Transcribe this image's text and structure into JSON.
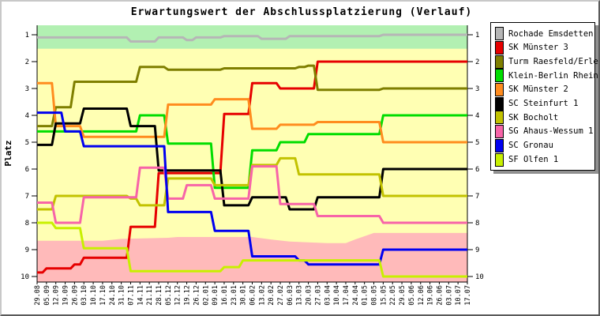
{
  "chart_data": {
    "type": "line",
    "title": "Erwartungswert der Abschlussplatzierung (Verlauf)",
    "xlabel": "",
    "ylabel": "Platz",
    "y_ticks": [
      1,
      2,
      3,
      4,
      5,
      6,
      7,
      8,
      9,
      10
    ],
    "y_axis_inverted": true,
    "ylim": [
      0.65,
      10.2
    ],
    "grid": false,
    "legend_position": "right-outside",
    "x_labels": [
      "29.08",
      "05.09",
      "12.09",
      "19.09",
      "26.09",
      "03.10",
      "10.10",
      "17.10",
      "24.10",
      "31.10",
      "07.11",
      "14.11",
      "21.11",
      "28.11",
      "05.12",
      "12.12",
      "19.12",
      "26.12",
      "02.01",
      "09.01",
      "16.01",
      "23.01",
      "30.01",
      "06.02",
      "13.02",
      "20.02",
      "27.02",
      "06.03",
      "13.03",
      "20.03",
      "27.03",
      "03.04",
      "10.04",
      "17.04",
      "24.04",
      "01.05",
      "08.05",
      "15.05",
      "22.05",
      "29.05",
      "05.06",
      "12.06",
      "19.06",
      "26.06",
      "03.07",
      "10.07",
      "17.07"
    ],
    "bands": [
      {
        "name": "promotion-zone",
        "color": "#b2f0b2",
        "from_p": 0.65,
        "to_p": 1.52
      },
      {
        "name": "midfield-zone",
        "color": "#ffffb3",
        "from_p": 1.52,
        "to_p": "relegation-boundary"
      },
      {
        "name": "relegation-zone",
        "color": "#ffbaba",
        "boundary": [
          [
            0,
            8.67
          ],
          [
            7,
            8.67
          ],
          [
            9,
            8.6
          ],
          [
            14,
            8.56
          ],
          [
            15,
            8.53
          ],
          [
            23,
            8.53
          ],
          [
            25,
            8.62
          ],
          [
            27,
            8.7
          ],
          [
            31,
            8.76
          ],
          [
            33,
            8.76
          ],
          [
            34,
            8.62
          ],
          [
            35,
            8.5
          ],
          [
            36,
            8.38
          ],
          [
            46,
            8.38
          ]
        ],
        "to_p": 10.2
      }
    ],
    "series": [
      {
        "name": "Rochade Emsdetten 1",
        "color": "#b6b6b6",
        "values": [
          1.1,
          1.1,
          1.1,
          1.1,
          1.1,
          1.1,
          1.1,
          1.1,
          1.1,
          1.1,
          1.25,
          1.25,
          1.25,
          1.1,
          1.1,
          1.1,
          1.2,
          1.1,
          1.1,
          1.1,
          1.05,
          1.05,
          1.05,
          1.05,
          1.15,
          1.15,
          1.15,
          1.05,
          1.05,
          1.05,
          1.05,
          1.05,
          1.05,
          1.05,
          1.05,
          1.05,
          1.05,
          1.0,
          1.0,
          1.0,
          1.0,
          1.0,
          1.0,
          1.0,
          1.0,
          1.0,
          1.0
        ]
      },
      {
        "name": "SK Münster 3",
        "color": "#e60000",
        "values": [
          9.85,
          9.7,
          9.7,
          9.7,
          9.55,
          9.3,
          9.3,
          9.3,
          9.3,
          9.3,
          8.15,
          8.15,
          8.15,
          6.15,
          6.15,
          6.15,
          6.15,
          6.15,
          6.15,
          6.15,
          3.95,
          3.95,
          3.95,
          2.8,
          2.8,
          2.8,
          3.0,
          3.0,
          3.0,
          3.0,
          2.0,
          2.0,
          2.0,
          2.0,
          2.0,
          2.0,
          2.0,
          2.0,
          2.0,
          2.0,
          2.0,
          2.0,
          2.0,
          2.0,
          2.0,
          2.0,
          2.0
        ]
      },
      {
        "name": "Turm Raesfeld/Erle",
        "color": "#7f7f00",
        "values": [
          4.4,
          4.4,
          3.7,
          3.7,
          2.75,
          2.75,
          2.75,
          2.75,
          2.75,
          2.75,
          2.75,
          2.2,
          2.2,
          2.2,
          2.3,
          2.3,
          2.3,
          2.3,
          2.3,
          2.3,
          2.25,
          2.25,
          2.25,
          2.25,
          2.25,
          2.25,
          2.25,
          2.25,
          2.2,
          2.15,
          3.05,
          3.05,
          3.05,
          3.05,
          3.05,
          3.05,
          3.05,
          3.0,
          3.0,
          3.0,
          3.0,
          3.0,
          3.0,
          3.0,
          3.0,
          3.0,
          3.0
        ]
      },
      {
        "name": "Klein-Berlin Rheine",
        "color": "#00dd00",
        "values": [
          4.6,
          4.6,
          4.6,
          4.6,
          4.6,
          4.6,
          4.6,
          4.6,
          4.6,
          4.6,
          4.6,
          4.0,
          4.0,
          4.0,
          5.05,
          5.05,
          5.05,
          5.05,
          5.05,
          6.7,
          6.7,
          6.7,
          6.7,
          5.3,
          5.3,
          5.3,
          5.0,
          5.0,
          5.0,
          4.7,
          4.7,
          4.7,
          4.7,
          4.7,
          4.7,
          4.7,
          4.7,
          4.0,
          4.0,
          4.0,
          4.0,
          4.0,
          4.0,
          4.0,
          4.0,
          4.0,
          4.0
        ]
      },
      {
        "name": "SK Münster 2",
        "color": "#ff8c1e",
        "values": [
          2.8,
          2.8,
          4.4,
          4.4,
          4.4,
          4.8,
          4.8,
          4.8,
          4.8,
          4.8,
          4.8,
          4.8,
          4.8,
          4.8,
          3.6,
          3.6,
          3.6,
          3.6,
          3.6,
          3.4,
          3.4,
          3.4,
          3.4,
          4.5,
          4.5,
          4.5,
          4.35,
          4.35,
          4.35,
          4.35,
          4.25,
          4.25,
          4.25,
          4.25,
          4.25,
          4.25,
          4.25,
          5.0,
          5.0,
          5.0,
          5.0,
          5.0,
          5.0,
          5.0,
          5.0,
          5.0,
          5.0
        ]
      },
      {
        "name": "SC Steinfurt 1",
        "color": "#000000",
        "values": [
          5.1,
          5.1,
          4.3,
          4.3,
          4.3,
          3.75,
          3.75,
          3.75,
          3.75,
          3.75,
          4.4,
          4.4,
          4.4,
          6.05,
          6.05,
          6.05,
          6.05,
          6.05,
          6.05,
          6.05,
          7.35,
          7.35,
          7.35,
          7.05,
          7.05,
          7.05,
          7.05,
          7.5,
          7.5,
          7.5,
          7.05,
          7.05,
          7.05,
          7.05,
          7.05,
          7.05,
          7.05,
          6.0,
          6.0,
          6.0,
          6.0,
          6.0,
          6.0,
          6.0,
          6.0,
          6.0,
          6.0
        ]
      },
      {
        "name": "SK Bocholt",
        "color": "#c2c200",
        "values": [
          7.5,
          7.5,
          7.0,
          7.0,
          7.0,
          7.0,
          7.0,
          7.0,
          7.0,
          7.0,
          7.1,
          7.35,
          7.35,
          7.35,
          6.35,
          6.35,
          6.35,
          6.35,
          6.35,
          6.6,
          6.6,
          6.6,
          6.6,
          5.85,
          5.85,
          5.85,
          5.6,
          5.6,
          6.2,
          6.2,
          6.2,
          6.2,
          6.2,
          6.2,
          6.2,
          6.2,
          6.2,
          7.0,
          7.0,
          7.0,
          7.0,
          7.0,
          7.0,
          7.0,
          7.0,
          7.0,
          7.0
        ]
      },
      {
        "name": "SG Ahaus-Wessum 1",
        "color": "#f764a8",
        "values": [
          7.25,
          7.25,
          8.0,
          8.0,
          8.0,
          7.05,
          7.05,
          7.05,
          7.05,
          7.05,
          7.05,
          5.95,
          5.95,
          5.95,
          7.1,
          7.1,
          6.6,
          6.6,
          6.6,
          7.1,
          7.1,
          7.1,
          7.1,
          5.9,
          5.9,
          5.9,
          7.3,
          7.3,
          7.3,
          7.3,
          7.75,
          7.75,
          7.75,
          7.75,
          7.75,
          7.75,
          7.75,
          8.0,
          8.0,
          8.0,
          8.0,
          8.0,
          8.0,
          8.0,
          8.0,
          8.0,
          8.0
        ]
      },
      {
        "name": "SC Gronau",
        "color": "#0000f0",
        "values": [
          3.9,
          3.9,
          3.9,
          4.6,
          4.6,
          5.15,
          5.15,
          5.15,
          5.15,
          5.15,
          5.15,
          5.15,
          5.15,
          5.15,
          7.6,
          7.6,
          7.6,
          7.6,
          7.6,
          8.3,
          8.3,
          8.3,
          8.3,
          9.25,
          9.25,
          9.25,
          9.25,
          9.25,
          9.4,
          9.55,
          9.55,
          9.55,
          9.55,
          9.55,
          9.55,
          9.55,
          9.55,
          9.0,
          9.0,
          9.0,
          9.0,
          9.0,
          9.0,
          9.0,
          9.0,
          9.0,
          9.0
        ]
      },
      {
        "name": "SF Olfen 1",
        "color": "#c8f000",
        "values": [
          8.0,
          8.0,
          8.2,
          8.2,
          8.2,
          8.95,
          8.95,
          8.95,
          8.95,
          8.95,
          9.8,
          9.8,
          9.8,
          9.8,
          9.8,
          9.8,
          9.8,
          9.8,
          9.8,
          9.8,
          9.65,
          9.65,
          9.4,
          9.4,
          9.4,
          9.4,
          9.4,
          9.4,
          9.4,
          9.4,
          9.4,
          9.4,
          9.4,
          9.4,
          9.4,
          9.4,
          9.4,
          10.0,
          10.0,
          10.0,
          10.0,
          10.0,
          10.0,
          10.0,
          10.0,
          10.0,
          10.0
        ]
      }
    ]
  }
}
